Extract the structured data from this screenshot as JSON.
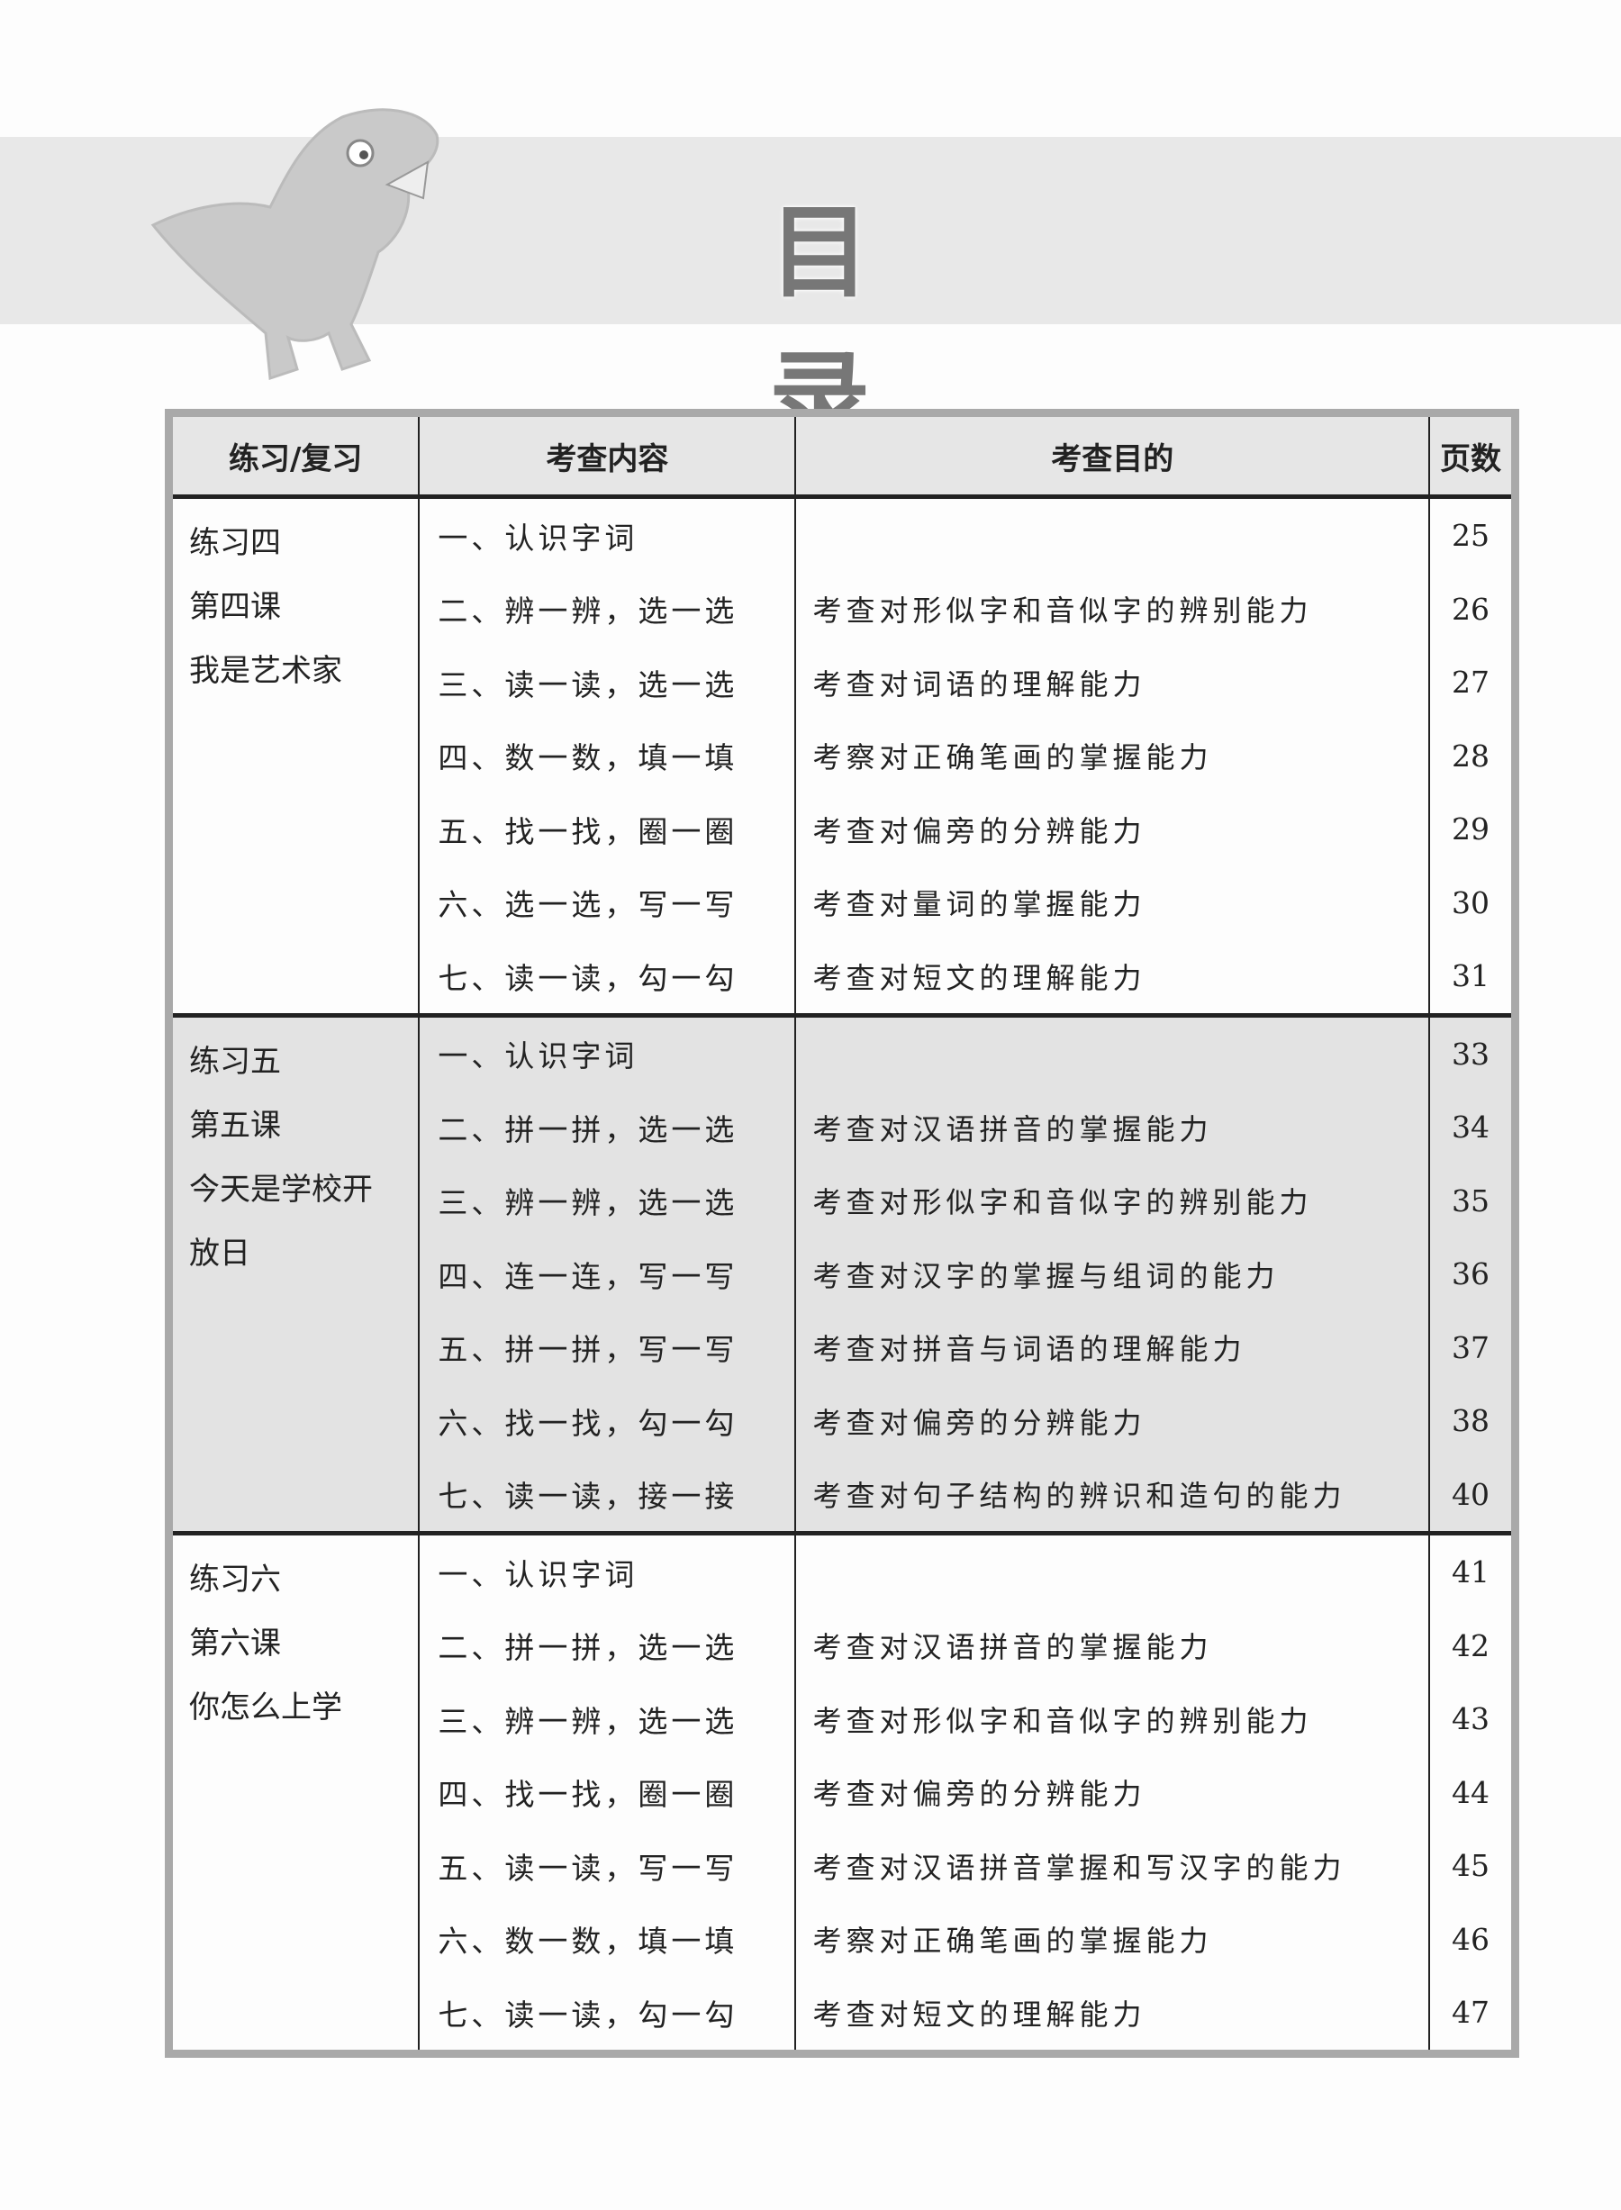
{
  "title": "目 录",
  "table": {
    "headers": [
      "练习/复习",
      "考查内容",
      "考查目的",
      "页数"
    ],
    "groups": [
      {
        "label_lines": [
          "练习四",
          "第四课",
          "我是艺术家"
        ],
        "rows": [
          {
            "content": "一、认识字词",
            "purpose": "",
            "page": "25"
          },
          {
            "content": "二、辨一辨，选一选",
            "purpose": "考查对形似字和音似字的辨别能力",
            "page": "26"
          },
          {
            "content": "三、读一读，选一选",
            "purpose": "考查对词语的理解能力",
            "page": "27"
          },
          {
            "content": "四、数一数，填一填",
            "purpose": "考察对正确笔画的掌握能力",
            "page": "28"
          },
          {
            "content": "五、找一找，圈一圈",
            "purpose": "考查对偏旁的分辨能力",
            "page": "29"
          },
          {
            "content": "六、选一选，写一写",
            "purpose": "考查对量词的掌握能力",
            "page": "30"
          },
          {
            "content": "七、读一读，勾一勾",
            "purpose": "考查对短文的理解能力",
            "page": "31"
          }
        ]
      },
      {
        "label_lines": [
          "练习五",
          "第五课",
          "今天是学校开",
          "放日"
        ],
        "rows": [
          {
            "content": "一、认识字词",
            "purpose": "",
            "page": "33"
          },
          {
            "content": "二、拼一拼，选一选",
            "purpose": "考查对汉语拼音的掌握能力",
            "page": "34"
          },
          {
            "content": "三、辨一辨，选一选",
            "purpose": "考查对形似字和音似字的辨别能力",
            "page": "35"
          },
          {
            "content": "四、连一连，写一写",
            "purpose": "考查对汉字的掌握与组词的能力",
            "page": "36"
          },
          {
            "content": "五、拼一拼，写一写",
            "purpose": "考查对拼音与词语的理解能力",
            "page": "37"
          },
          {
            "content": "六、找一找，勾一勾",
            "purpose": "考查对偏旁的分辨能力",
            "page": "38"
          },
          {
            "content": "七、读一读，接一接",
            "purpose": "考查对句子结构的辨识和造句的能力",
            "page": "40"
          }
        ]
      },
      {
        "label_lines": [
          "练习六",
          "第六课",
          "你怎么上学"
        ],
        "rows": [
          {
            "content": "一、认识字词",
            "purpose": "",
            "page": "41"
          },
          {
            "content": "二、拼一拼，选一选",
            "purpose": "考查对汉语拼音的掌握能力",
            "page": "42"
          },
          {
            "content": "三、辨一辨，选一选",
            "purpose": "考查对形似字和音似字的辨别能力",
            "page": "43"
          },
          {
            "content": "四、找一找，圈一圈",
            "purpose": "考查对偏旁的分辨能力",
            "page": "44"
          },
          {
            "content": "五、读一读，写一写",
            "purpose": "考查对汉语拼音掌握和写汉字的能力",
            "page": "45"
          },
          {
            "content": "六、数一数，填一填",
            "purpose": "考察对正确笔画的掌握能力",
            "page": "46"
          },
          {
            "content": "七、读一读，勾一勾",
            "purpose": "考查对短文的理解能力",
            "page": "47"
          }
        ]
      }
    ]
  },
  "colors": {
    "band": "#e8e8e8",
    "shaded_group": "#e3e3e3",
    "table_frame": "#a9a9a9"
  }
}
